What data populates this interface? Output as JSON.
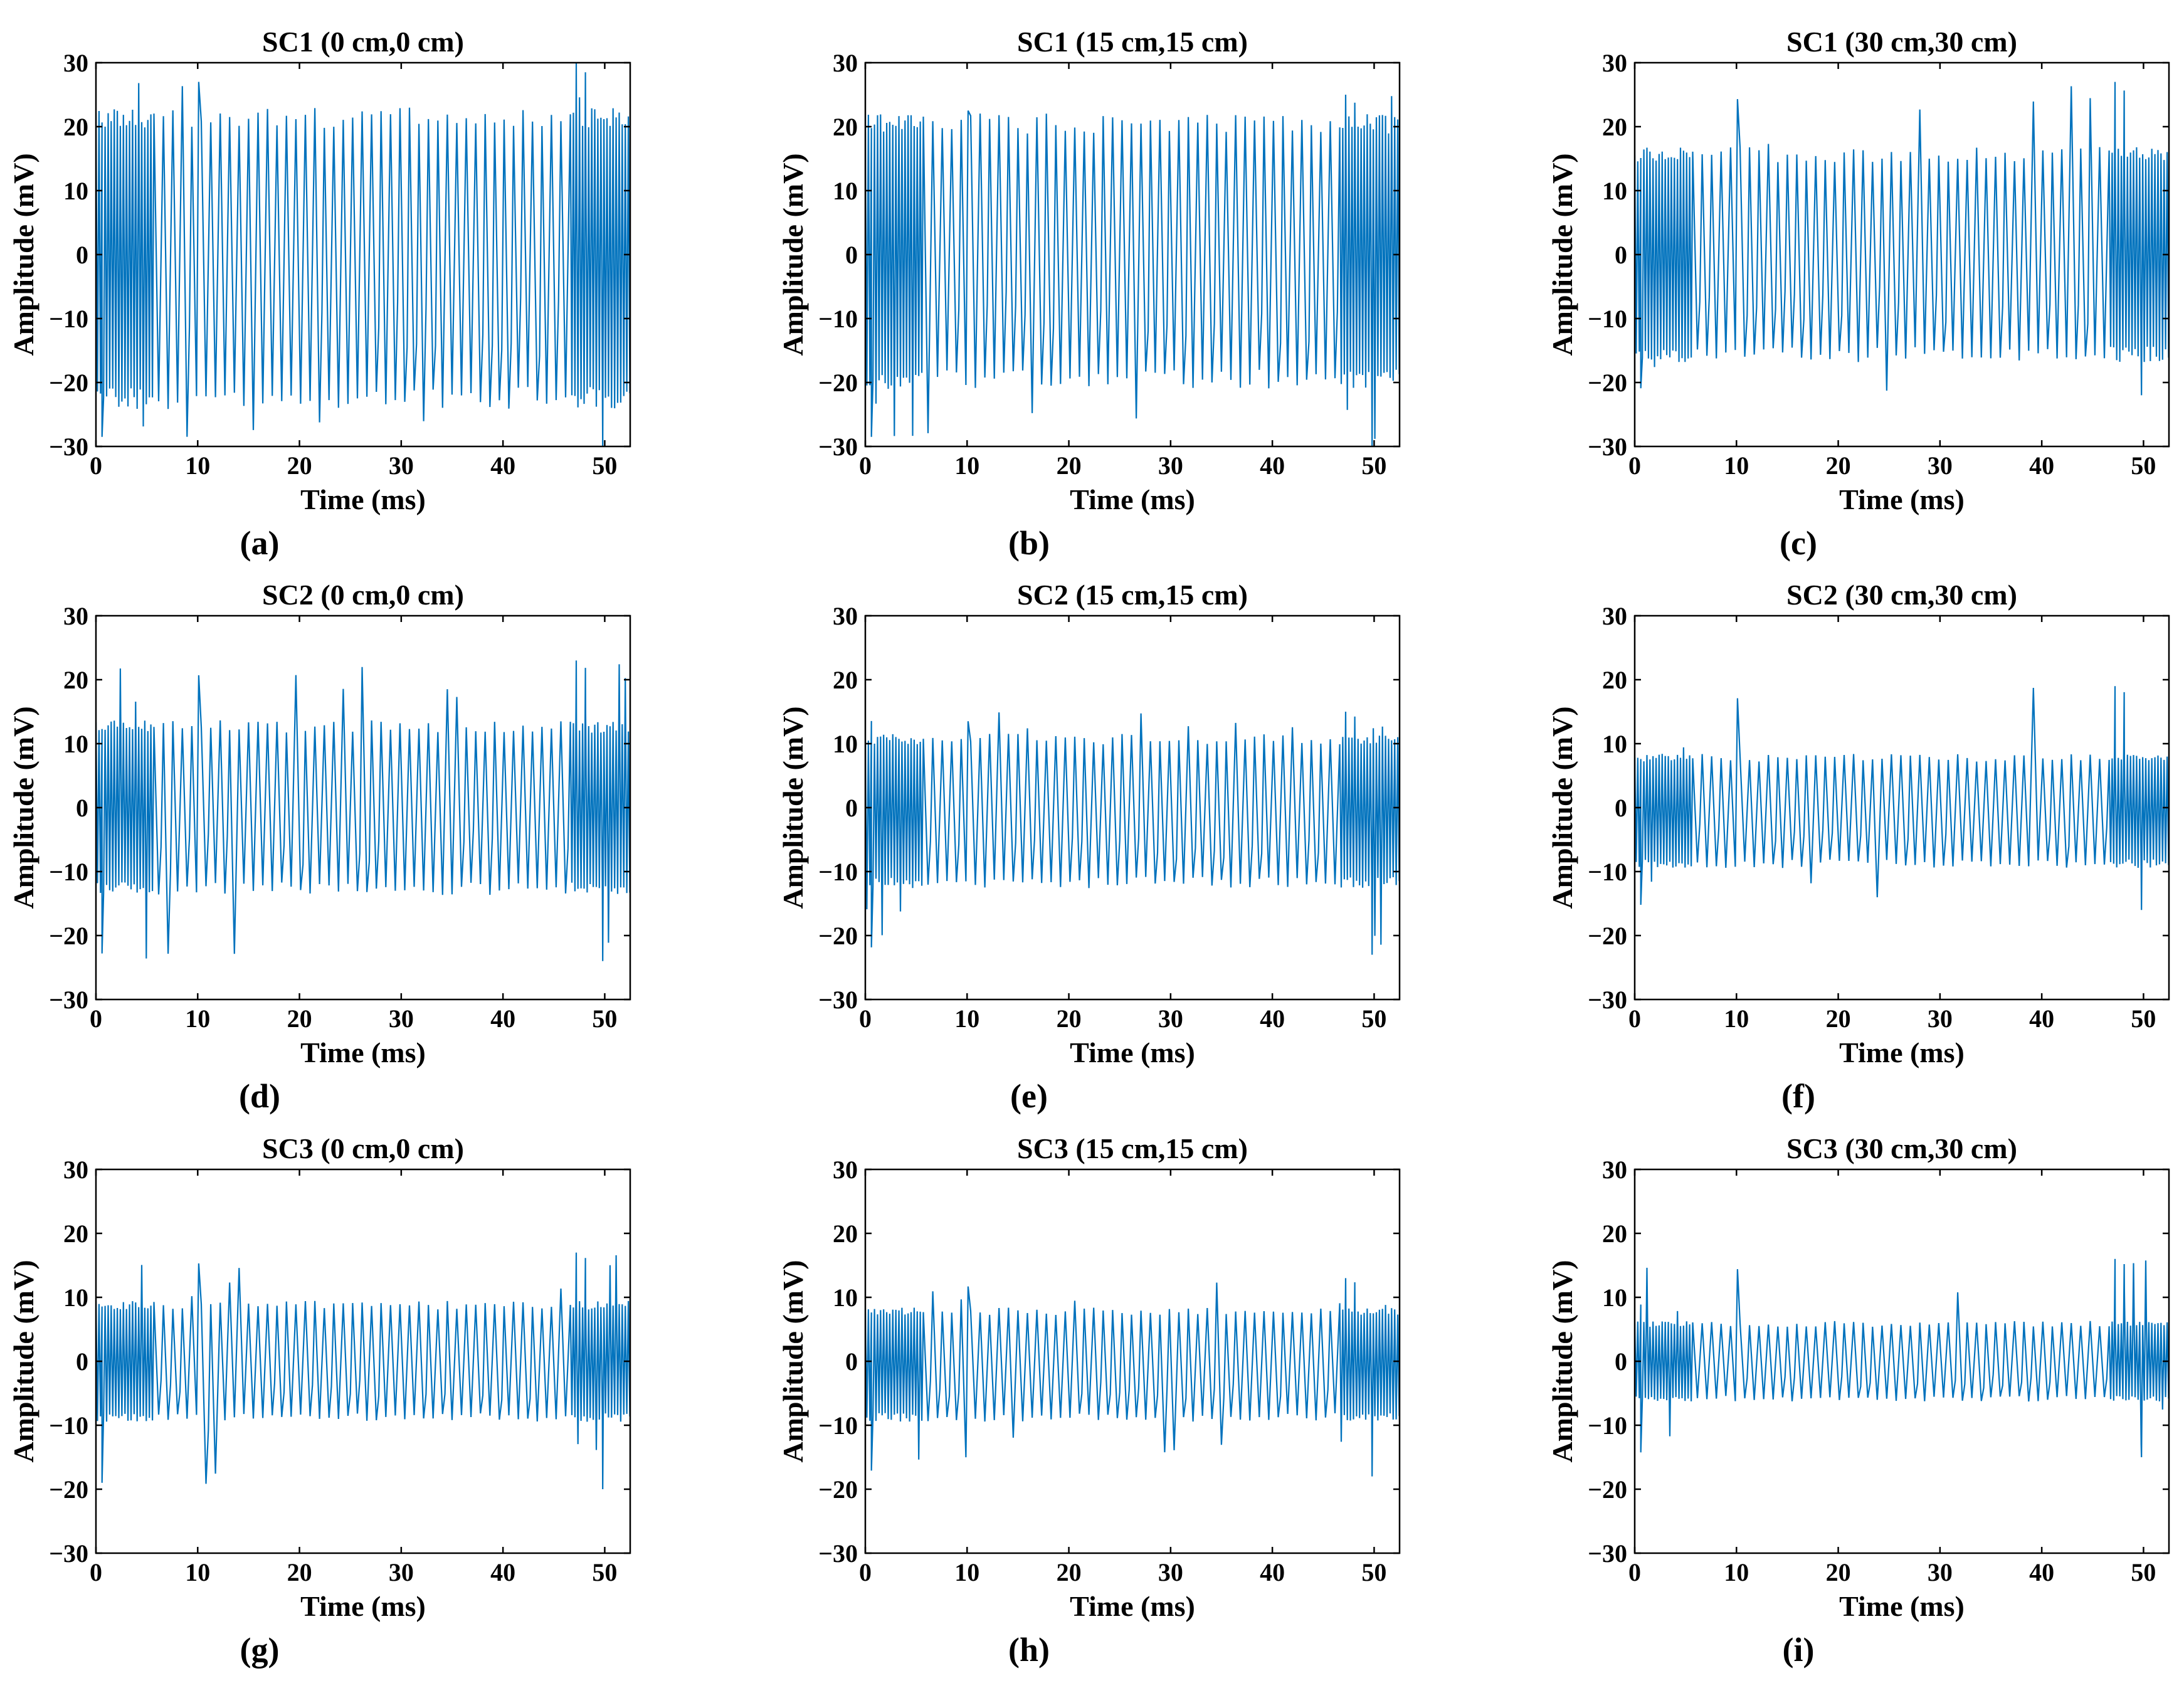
{
  "figure": {
    "series_color": "#0072BD"
  },
  "chart_data": [
    {
      "type": "line",
      "panel": "(a)",
      "title": "SC1 (0 cm,0 cm)",
      "xlabel": "Time (ms)",
      "ylabel": "Amplitude (mV)",
      "xlim": [
        0,
        52.5
      ],
      "ylim": [
        -30,
        30
      ],
      "xticks": [
        0,
        10,
        20,
        30,
        40,
        50
      ],
      "yticks": [
        -30,
        -20,
        -10,
        0,
        10,
        20,
        30
      ],
      "signal": {
        "period_ms": 0.93,
        "burst_period_ms": 0.3,
        "peak_mV": 22,
        "trough_mV": -23,
        "burst_start_ms": [
          0,
          5.5
        ],
        "burst_end_ms": [
          46.5,
          52.5
        ],
        "max_mV": 30,
        "min_mV": -30
      }
    },
    {
      "type": "line",
      "panel": "(b)",
      "title": "SC1 (15 cm,15 cm)",
      "xlabel": "Time (ms)",
      "ylabel": "Amplitude (mV)",
      "xlim": [
        0,
        52.5
      ],
      "ylim": [
        -30,
        30
      ],
      "xticks": [
        0,
        10,
        20,
        30,
        40,
        50
      ],
      "yticks": [
        -30,
        -20,
        -10,
        0,
        10,
        20,
        30
      ],
      "signal": {
        "period_ms": 0.93,
        "burst_period_ms": 0.3,
        "peak_mV": 21,
        "trough_mV": -20,
        "burst_start_ms": [
          0,
          5.5
        ],
        "burst_end_ms": [
          46.5,
          52.5
        ],
        "max_mV": 25,
        "min_mV": -30
      }
    },
    {
      "type": "line",
      "panel": "(c)",
      "title": "SC1 (30 cm,30 cm)",
      "xlabel": "Time (ms)",
      "ylabel": "Amplitude (mV)",
      "xlim": [
        0,
        52.5
      ],
      "ylim": [
        -30,
        30
      ],
      "xticks": [
        0,
        10,
        20,
        30,
        40,
        50
      ],
      "yticks": [
        -30,
        -20,
        -10,
        0,
        10,
        20,
        30
      ],
      "signal": {
        "period_ms": 0.93,
        "burst_period_ms": 0.3,
        "peak_mV": 16,
        "trough_mV": -16,
        "burst_start_ms": [
          0,
          5.5
        ],
        "burst_end_ms": [
          46.5,
          52.5
        ],
        "max_mV": 27,
        "min_mV": -22
      }
    },
    {
      "type": "line",
      "panel": "(d)",
      "title": "SC2 (0 cm,0 cm)",
      "xlabel": "Time (ms)",
      "ylabel": "Amplitude (mV)",
      "xlim": [
        0,
        52.5
      ],
      "ylim": [
        -30,
        30
      ],
      "xticks": [
        0,
        10,
        20,
        30,
        40,
        50
      ],
      "yticks": [
        -30,
        -20,
        -10,
        0,
        10,
        20,
        30
      ],
      "signal": {
        "period_ms": 0.93,
        "burst_period_ms": 0.3,
        "peak_mV": 13,
        "trough_mV": -13,
        "burst_start_ms": [
          0,
          5.5
        ],
        "burst_end_ms": [
          46.5,
          52.5
        ],
        "max_mV": 23,
        "min_mV": -24
      }
    },
    {
      "type": "line",
      "panel": "(e)",
      "title": "SC2 (15 cm,15 cm)",
      "xlabel": "Time (ms)",
      "ylabel": "Amplitude (mV)",
      "xlim": [
        0,
        52.5
      ],
      "ylim": [
        -30,
        30
      ],
      "xticks": [
        0,
        10,
        20,
        30,
        40,
        50
      ],
      "yticks": [
        -30,
        -20,
        -10,
        0,
        10,
        20,
        30
      ],
      "signal": {
        "period_ms": 0.93,
        "burst_period_ms": 0.3,
        "peak_mV": 11,
        "trough_mV": -12,
        "burst_start_ms": [
          0,
          5.5
        ],
        "burst_end_ms": [
          46.5,
          52.5
        ],
        "max_mV": 15,
        "min_mV": -23
      }
    },
    {
      "type": "line",
      "panel": "(f)",
      "title": "SC2 (30 cm,30 cm)",
      "xlabel": "Time (ms)",
      "ylabel": "Amplitude (mV)",
      "xlim": [
        0,
        52.5
      ],
      "ylim": [
        -30,
        30
      ],
      "xticks": [
        0,
        10,
        20,
        30,
        40,
        50
      ],
      "yticks": [
        -30,
        -20,
        -10,
        0,
        10,
        20,
        30
      ],
      "signal": {
        "period_ms": 0.93,
        "burst_period_ms": 0.3,
        "peak_mV": 8,
        "trough_mV": -9,
        "burst_start_ms": [
          0,
          5.5
        ],
        "burst_end_ms": [
          46.5,
          52.5
        ],
        "max_mV": 19,
        "min_mV": -16
      }
    },
    {
      "type": "line",
      "panel": "(g)",
      "title": "SC3 (0 cm,0 cm)",
      "xlabel": "Time (ms)",
      "ylabel": "Amplitude (mV)",
      "xlim": [
        0,
        52.5
      ],
      "ylim": [
        -30,
        30
      ],
      "xticks": [
        0,
        10,
        20,
        30,
        40,
        50
      ],
      "yticks": [
        -30,
        -20,
        -10,
        0,
        10,
        20,
        30
      ],
      "signal": {
        "period_ms": 0.93,
        "burst_period_ms": 0.3,
        "peak_mV": 9,
        "trough_mV": -9,
        "burst_start_ms": [
          0,
          5.5
        ],
        "burst_end_ms": [
          46.5,
          52.5
        ],
        "max_mV": 17,
        "min_mV": -20
      }
    },
    {
      "type": "line",
      "panel": "(h)",
      "title": "SC3 (15 cm,15 cm)",
      "xlabel": "Time (ms)",
      "ylabel": "Amplitude (mV)",
      "xlim": [
        0,
        52.5
      ],
      "ylim": [
        -30,
        30
      ],
      "xticks": [
        0,
        10,
        20,
        30,
        40,
        50
      ],
      "yticks": [
        -30,
        -20,
        -10,
        0,
        10,
        20,
        30
      ],
      "signal": {
        "period_ms": 0.93,
        "burst_period_ms": 0.3,
        "peak_mV": 8,
        "trough_mV": -9,
        "burst_start_ms": [
          0,
          5.5
        ],
        "burst_end_ms": [
          46.5,
          52.5
        ],
        "max_mV": 13,
        "min_mV": -18
      }
    },
    {
      "type": "line",
      "panel": "(i)",
      "title": "SC3 (30 cm,30 cm)",
      "xlabel": "Time (ms)",
      "ylabel": "Amplitude (mV)",
      "xlim": [
        0,
        52.5
      ],
      "ylim": [
        -30,
        30
      ],
      "xticks": [
        0,
        10,
        20,
        30,
        40,
        50
      ],
      "yticks": [
        -30,
        -20,
        -10,
        0,
        10,
        20,
        30
      ],
      "signal": {
        "period_ms": 0.93,
        "burst_period_ms": 0.3,
        "peak_mV": 6,
        "trough_mV": -6,
        "burst_start_ms": [
          0,
          5.5
        ],
        "burst_end_ms": [
          46.5,
          52.5
        ],
        "max_mV": 16,
        "min_mV": -15
      }
    }
  ]
}
